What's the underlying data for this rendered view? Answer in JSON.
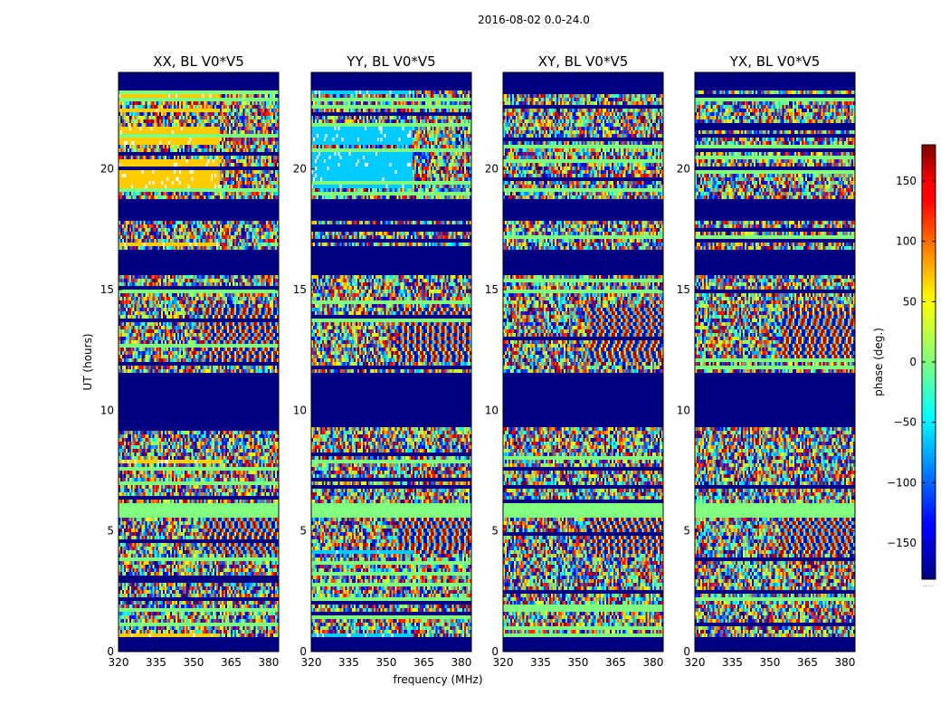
{
  "chart_data": {
    "type": "heatmap",
    "suptitle": "2016-08-02 0.0-24.0",
    "xlabel": "frequency (MHz)",
    "ylabel": "UT (hours)",
    "xlim": [
      320,
      384
    ],
    "ylim": [
      0,
      24
    ],
    "xticks": [
      320,
      335,
      350,
      365,
      380
    ],
    "yticks": [
      0,
      5,
      10,
      15,
      20
    ],
    "panels": [
      {
        "title": "XX, BL V0*V5",
        "shows_ylabel": true,
        "shows_xlabel": false,
        "tint": "#ffcc00",
        "variant": 1
      },
      {
        "title": "YY, BL V0*V5",
        "shows_ylabel": false,
        "shows_xlabel": true,
        "tint": "#00ccff",
        "variant": 2
      },
      {
        "title": "XY, BL V0*V5",
        "shows_ylabel": false,
        "shows_xlabel": false,
        "tint": "",
        "variant": 3
      },
      {
        "title": "YX, BL V0*V5",
        "shows_ylabel": false,
        "shows_xlabel": false,
        "tint": "",
        "variant": 4
      }
    ],
    "flagged_ut_ranges": [
      [
        0,
        0.6
      ],
      [
        9.3,
        11.5
      ],
      [
        15.6,
        16.6
      ],
      [
        17.8,
        18.8
      ],
      [
        23.2,
        24
      ]
    ],
    "split_frequency_mhz": 360,
    "colorbar": {
      "label": "phase (deg.)",
      "vmin": -180,
      "vmax": 180,
      "ticks": [
        -150,
        -100,
        -50,
        0,
        50,
        100,
        150
      ],
      "tick_labels": [
        "−150",
        "−100",
        "−50",
        "0",
        "50",
        "100",
        "150"
      ],
      "colormap": "jet",
      "footnote": "....."
    },
    "masked_color": "#000080"
  }
}
